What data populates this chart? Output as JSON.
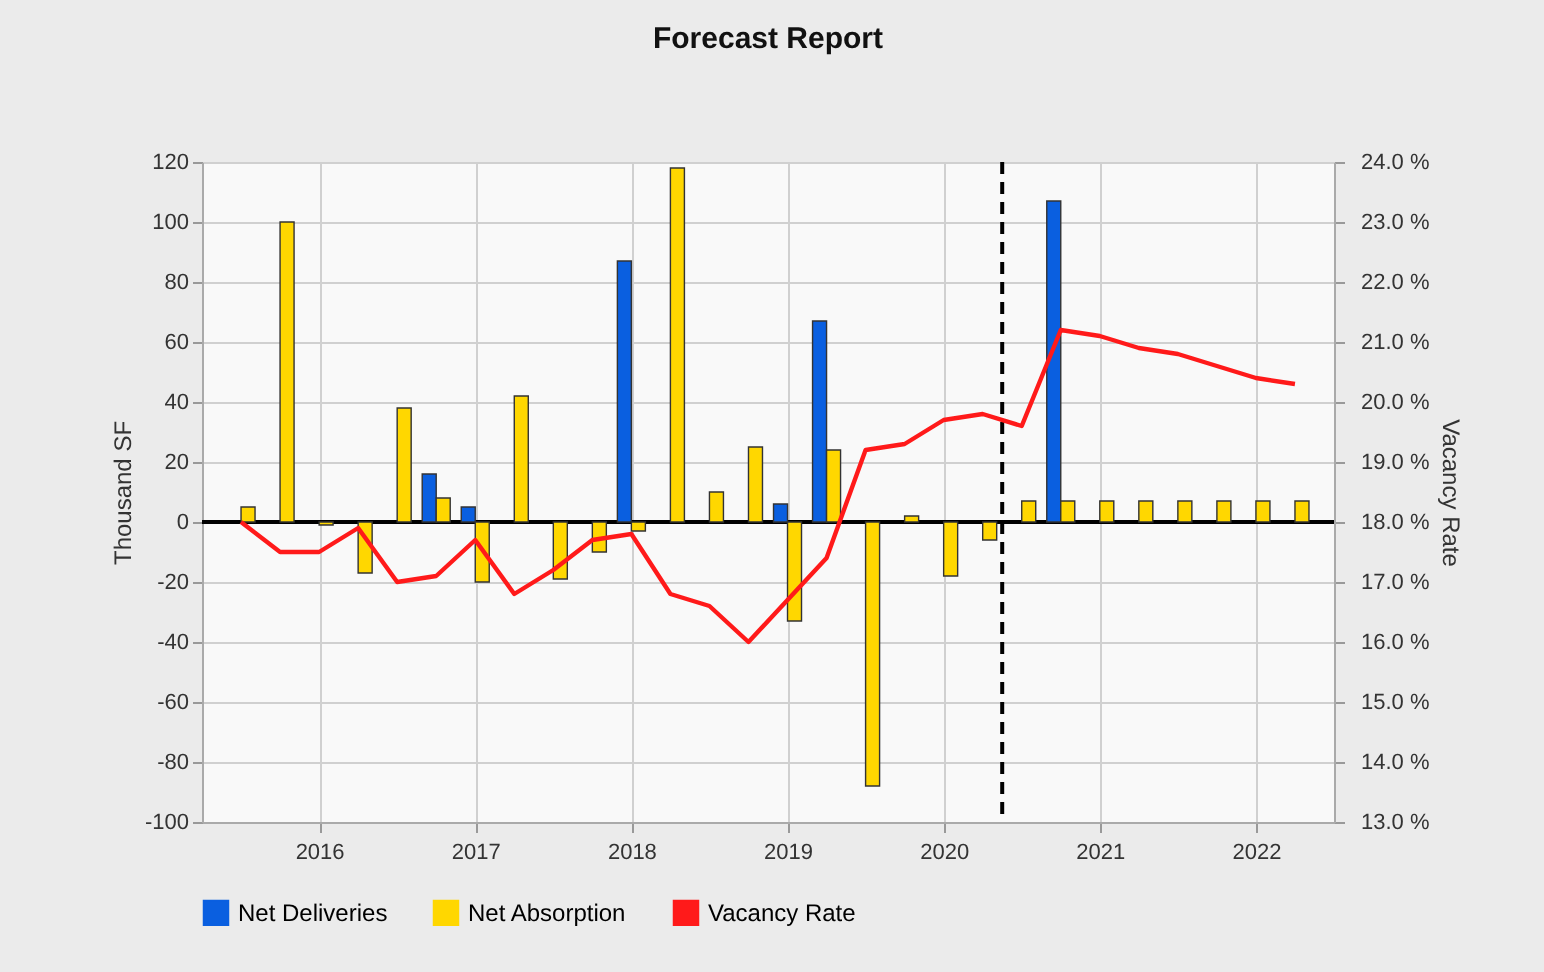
{
  "chart_data": {
    "type": "bar",
    "title": "Forecast Report",
    "ylabel": "Thousand SF",
    "y2label": "Vacancy Rate",
    "x": [
      2015.5,
      2015.75,
      2016,
      2016.25,
      2016.5,
      2016.75,
      2017,
      2017.25,
      2017.5,
      2017.75,
      2018,
      2018.25,
      2018.5,
      2018.75,
      2019,
      2019.25,
      2019.5,
      2019.75,
      2020,
      2020.25,
      2020.5,
      2020.75,
      2021,
      2021.25,
      2021.5,
      2021.75,
      2022,
      2022.25
    ],
    "series": [
      {
        "name": "Net Deliveries",
        "color": "#0a5fe0",
        "values": [
          null,
          null,
          null,
          null,
          null,
          16,
          5,
          null,
          null,
          null,
          87,
          null,
          null,
          null,
          6,
          67,
          null,
          null,
          null,
          null,
          null,
          107,
          null,
          null,
          null,
          null,
          null,
          null
        ]
      },
      {
        "name": "Net Absorption",
        "color": "#ffd700",
        "values": [
          5,
          100,
          -1,
          -17,
          38,
          8,
          -20,
          42,
          -19,
          -10,
          -3,
          118,
          10,
          25,
          -33,
          24,
          -88,
          2,
          -18,
          -6,
          7,
          7,
          7,
          7,
          7,
          7,
          7,
          7
        ]
      },
      {
        "name": "Vacancy Rate",
        "type": "line",
        "axis": "y2",
        "color": "#ff1a1a",
        "values": [
          18.0,
          17.5,
          17.5,
          17.9,
          17.0,
          17.1,
          17.7,
          16.8,
          17.2,
          17.7,
          17.8,
          16.8,
          16.6,
          16.0,
          16.7,
          17.4,
          19.2,
          19.3,
          19.7,
          19.8,
          19.6,
          21.2,
          21.1,
          20.9,
          20.8,
          20.6,
          20.4,
          20.3
        ]
      }
    ],
    "xlim": [
      2015.25,
      2022.5
    ],
    "xticks": [
      2016,
      2017,
      2018,
      2019,
      2020,
      2021,
      2022
    ],
    "ylim": [
      -100,
      120
    ],
    "yticks": [
      -100,
      -80,
      -60,
      -40,
      -20,
      0,
      20,
      40,
      60,
      80,
      100,
      120
    ],
    "y2lim": [
      13,
      24
    ],
    "y2ticks": [
      {
        "value": 13,
        "label": "13.0 %"
      },
      {
        "value": 14,
        "label": "14.0 %"
      },
      {
        "value": 15,
        "label": "15.0 %"
      },
      {
        "value": 16,
        "label": "16.0 %"
      },
      {
        "value": 17,
        "label": "17.0 %"
      },
      {
        "value": 18,
        "label": "18.0 %"
      },
      {
        "value": 19,
        "label": "19.0 %"
      },
      {
        "value": 20,
        "label": "20.0 %"
      },
      {
        "value": 21,
        "label": "21.0 %"
      },
      {
        "value": 22,
        "label": "22.0 %"
      },
      {
        "value": 23,
        "label": "23.0 %"
      },
      {
        "value": 24,
        "label": "24.0 %"
      }
    ],
    "ref_lines": [
      {
        "axis": "y",
        "value": 0,
        "color": "#000000",
        "line_style": "solid"
      },
      {
        "axis": "x",
        "value": 2020.375,
        "color": "#000000",
        "line_style": "dashed"
      }
    ],
    "grid": true,
    "legend": "bottom",
    "line_style": "solid",
    "marker": "none"
  }
}
